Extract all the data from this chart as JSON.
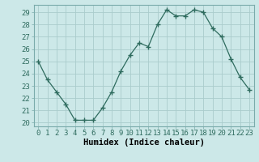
{
  "x": [
    0,
    1,
    2,
    3,
    4,
    5,
    6,
    7,
    8,
    9,
    10,
    11,
    12,
    13,
    14,
    15,
    16,
    17,
    18,
    19,
    20,
    21,
    22,
    23
  ],
  "y": [
    25.0,
    23.5,
    22.5,
    21.5,
    20.2,
    20.2,
    20.2,
    21.2,
    22.5,
    24.2,
    25.5,
    26.5,
    26.2,
    28.0,
    29.2,
    28.7,
    28.7,
    29.2,
    29.0,
    27.7,
    27.0,
    25.2,
    23.7,
    22.7
  ],
  "line_color": "#2e6b5e",
  "marker": "+",
  "marker_size": 4,
  "marker_lw": 1.0,
  "bg_color": "#cce8e8",
  "grid_color": "#aacccc",
  "xlabel": "Humidex (Indice chaleur)",
  "ylim_min": 19.7,
  "ylim_max": 29.6,
  "yticks": [
    20,
    21,
    22,
    23,
    24,
    25,
    26,
    27,
    28,
    29
  ],
  "xticks": [
    0,
    1,
    2,
    3,
    4,
    5,
    6,
    7,
    8,
    9,
    10,
    11,
    12,
    13,
    14,
    15,
    16,
    17,
    18,
    19,
    20,
    21,
    22,
    23
  ],
  "tick_fontsize": 6.5,
  "xlabel_fontsize": 7.5,
  "line_width": 0.9
}
